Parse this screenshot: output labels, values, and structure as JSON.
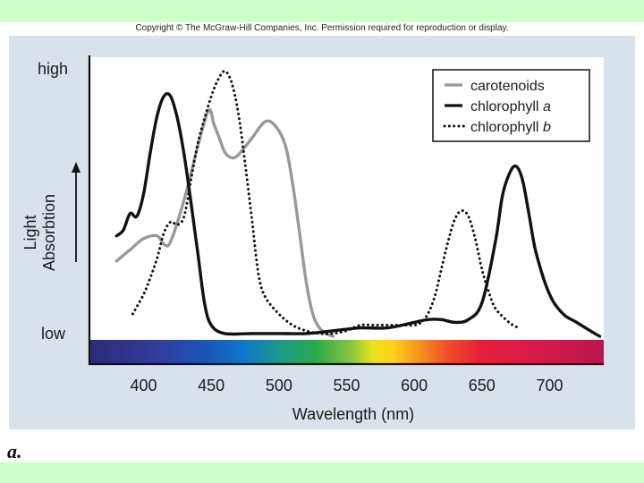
{
  "header": {
    "copyright": "Copyright © The McGraw-Hill Companies, Inc. Permission required for reproduction or display."
  },
  "figure": {
    "panel_label": "a."
  },
  "chart_data": {
    "type": "line",
    "title": "",
    "xlabel": "Wavelength (nm)",
    "ylabel_line1": "Light",
    "ylabel_line2": "Absorbtion",
    "y_high_label": "high",
    "y_low_label": "low",
    "xlim": [
      360,
      740
    ],
    "ylim": [
      0,
      100
    ],
    "x_ticks": [
      400,
      450,
      500,
      550,
      600,
      650,
      700
    ],
    "x_tick_labels": [
      "400",
      "450",
      "500",
      "550",
      "600",
      "650",
      "700"
    ],
    "legend_position": "top-right",
    "series": [
      {
        "name": "carotenoids",
        "label_text": "carotenoids",
        "style": "solid",
        "color": "#999999",
        "x": [
          380,
          390,
          400,
          410,
          415,
          420,
          430,
          440,
          448,
          452,
          456,
          460,
          465,
          470,
          480,
          490,
          498,
          505,
          510,
          515,
          520,
          525,
          530,
          535,
          540
        ],
        "y": [
          27,
          31,
          35,
          36,
          33,
          34,
          49,
          68,
          81,
          76,
          71,
          66,
          64,
          65,
          71,
          77,
          75,
          68,
          55,
          38,
          20,
          8,
          3,
          1,
          0
        ]
      },
      {
        "name": "chlorophyll a",
        "label_text": "chlorophyll",
        "label_italic": "a",
        "style": "solid",
        "color": "#111111",
        "x": [
          380,
          385,
          390,
          395,
          400,
          405,
          410,
          415,
          420,
          425,
          430,
          435,
          440,
          445,
          450,
          460,
          480,
          500,
          520,
          540,
          560,
          580,
          600,
          610,
          620,
          630,
          640,
          650,
          660,
          665,
          670,
          675,
          680,
          685,
          690,
          700,
          710,
          720,
          730,
          737
        ],
        "y": [
          36,
          38,
          44,
          43,
          51,
          66,
          79,
          86,
          86,
          78,
          65,
          48,
          30,
          12,
          4,
          1,
          1,
          1,
          1,
          2,
          3,
          3,
          5,
          6,
          6,
          5,
          6,
          12,
          34,
          50,
          58,
          61,
          56,
          43,
          30,
          15,
          8,
          5,
          2,
          0
        ]
      },
      {
        "name": "chlorophyll b",
        "label_text": "chlorophyll",
        "label_italic": "b",
        "style": "dotted",
        "color": "#111111",
        "x": [
          392,
          400,
          405,
          410,
          415,
          420,
          425,
          430,
          435,
          440,
          445,
          450,
          455,
          460,
          465,
          470,
          475,
          480,
          485,
          490,
          500,
          510,
          520,
          530,
          540,
          550,
          560,
          570,
          580,
          590,
          600,
          605,
          610,
          615,
          620,
          625,
          630,
          635,
          640,
          645,
          650,
          655,
          660,
          670,
          677
        ],
        "y": [
          8,
          15,
          21,
          28,
          37,
          41,
          40,
          43,
          56,
          69,
          78,
          86,
          92,
          95,
          91,
          80,
          62,
          42,
          22,
          14,
          8,
          4,
          2,
          1,
          1,
          2,
          4,
          4,
          4,
          4,
          4,
          5,
          8,
          14,
          24,
          34,
          42,
          45,
          43,
          35,
          24,
          16,
          10,
          5,
          3
        ]
      }
    ],
    "spectrum_bar": true
  }
}
